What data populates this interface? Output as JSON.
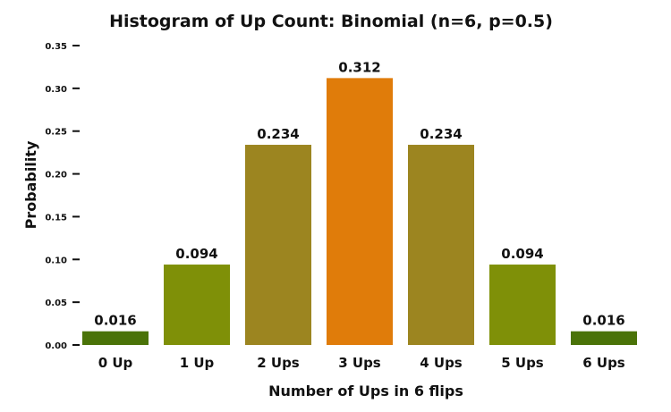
{
  "chart_data": {
    "type": "bar",
    "title": "Histogram of Up  Count: Binomial (n=6, p=0.5)",
    "xlabel": "Number of Ups in 6 flips",
    "ylabel": "Probability",
    "categories": [
      "0 Up",
      "1 Up",
      "2 Ups",
      "3 Ups",
      "4 Ups",
      "5 Ups",
      "6 Ups"
    ],
    "values": [
      0.016,
      0.094,
      0.234,
      0.312,
      0.234,
      0.094,
      0.016
    ],
    "value_labels": [
      "0.016",
      "0.094",
      "0.234",
      "0.312",
      "0.234",
      "0.094",
      "0.016"
    ],
    "bar_colors": [
      "#4a7308",
      "#7f9008",
      "#9c8520",
      "#e07c0a",
      "#9c8520",
      "#7f9008",
      "#4a7308"
    ],
    "ylim": [
      0,
      0.35
    ],
    "yticks": [
      0,
      0.05,
      0.1,
      0.15,
      0.2,
      0.25,
      0.3,
      0.35
    ],
    "ytick_labels": [
      "0.00",
      "0.05",
      "0.10",
      "0.15",
      "0.20",
      "0.25",
      "0.30",
      "0.35"
    ],
    "grid": false,
    "legend": "none"
  }
}
